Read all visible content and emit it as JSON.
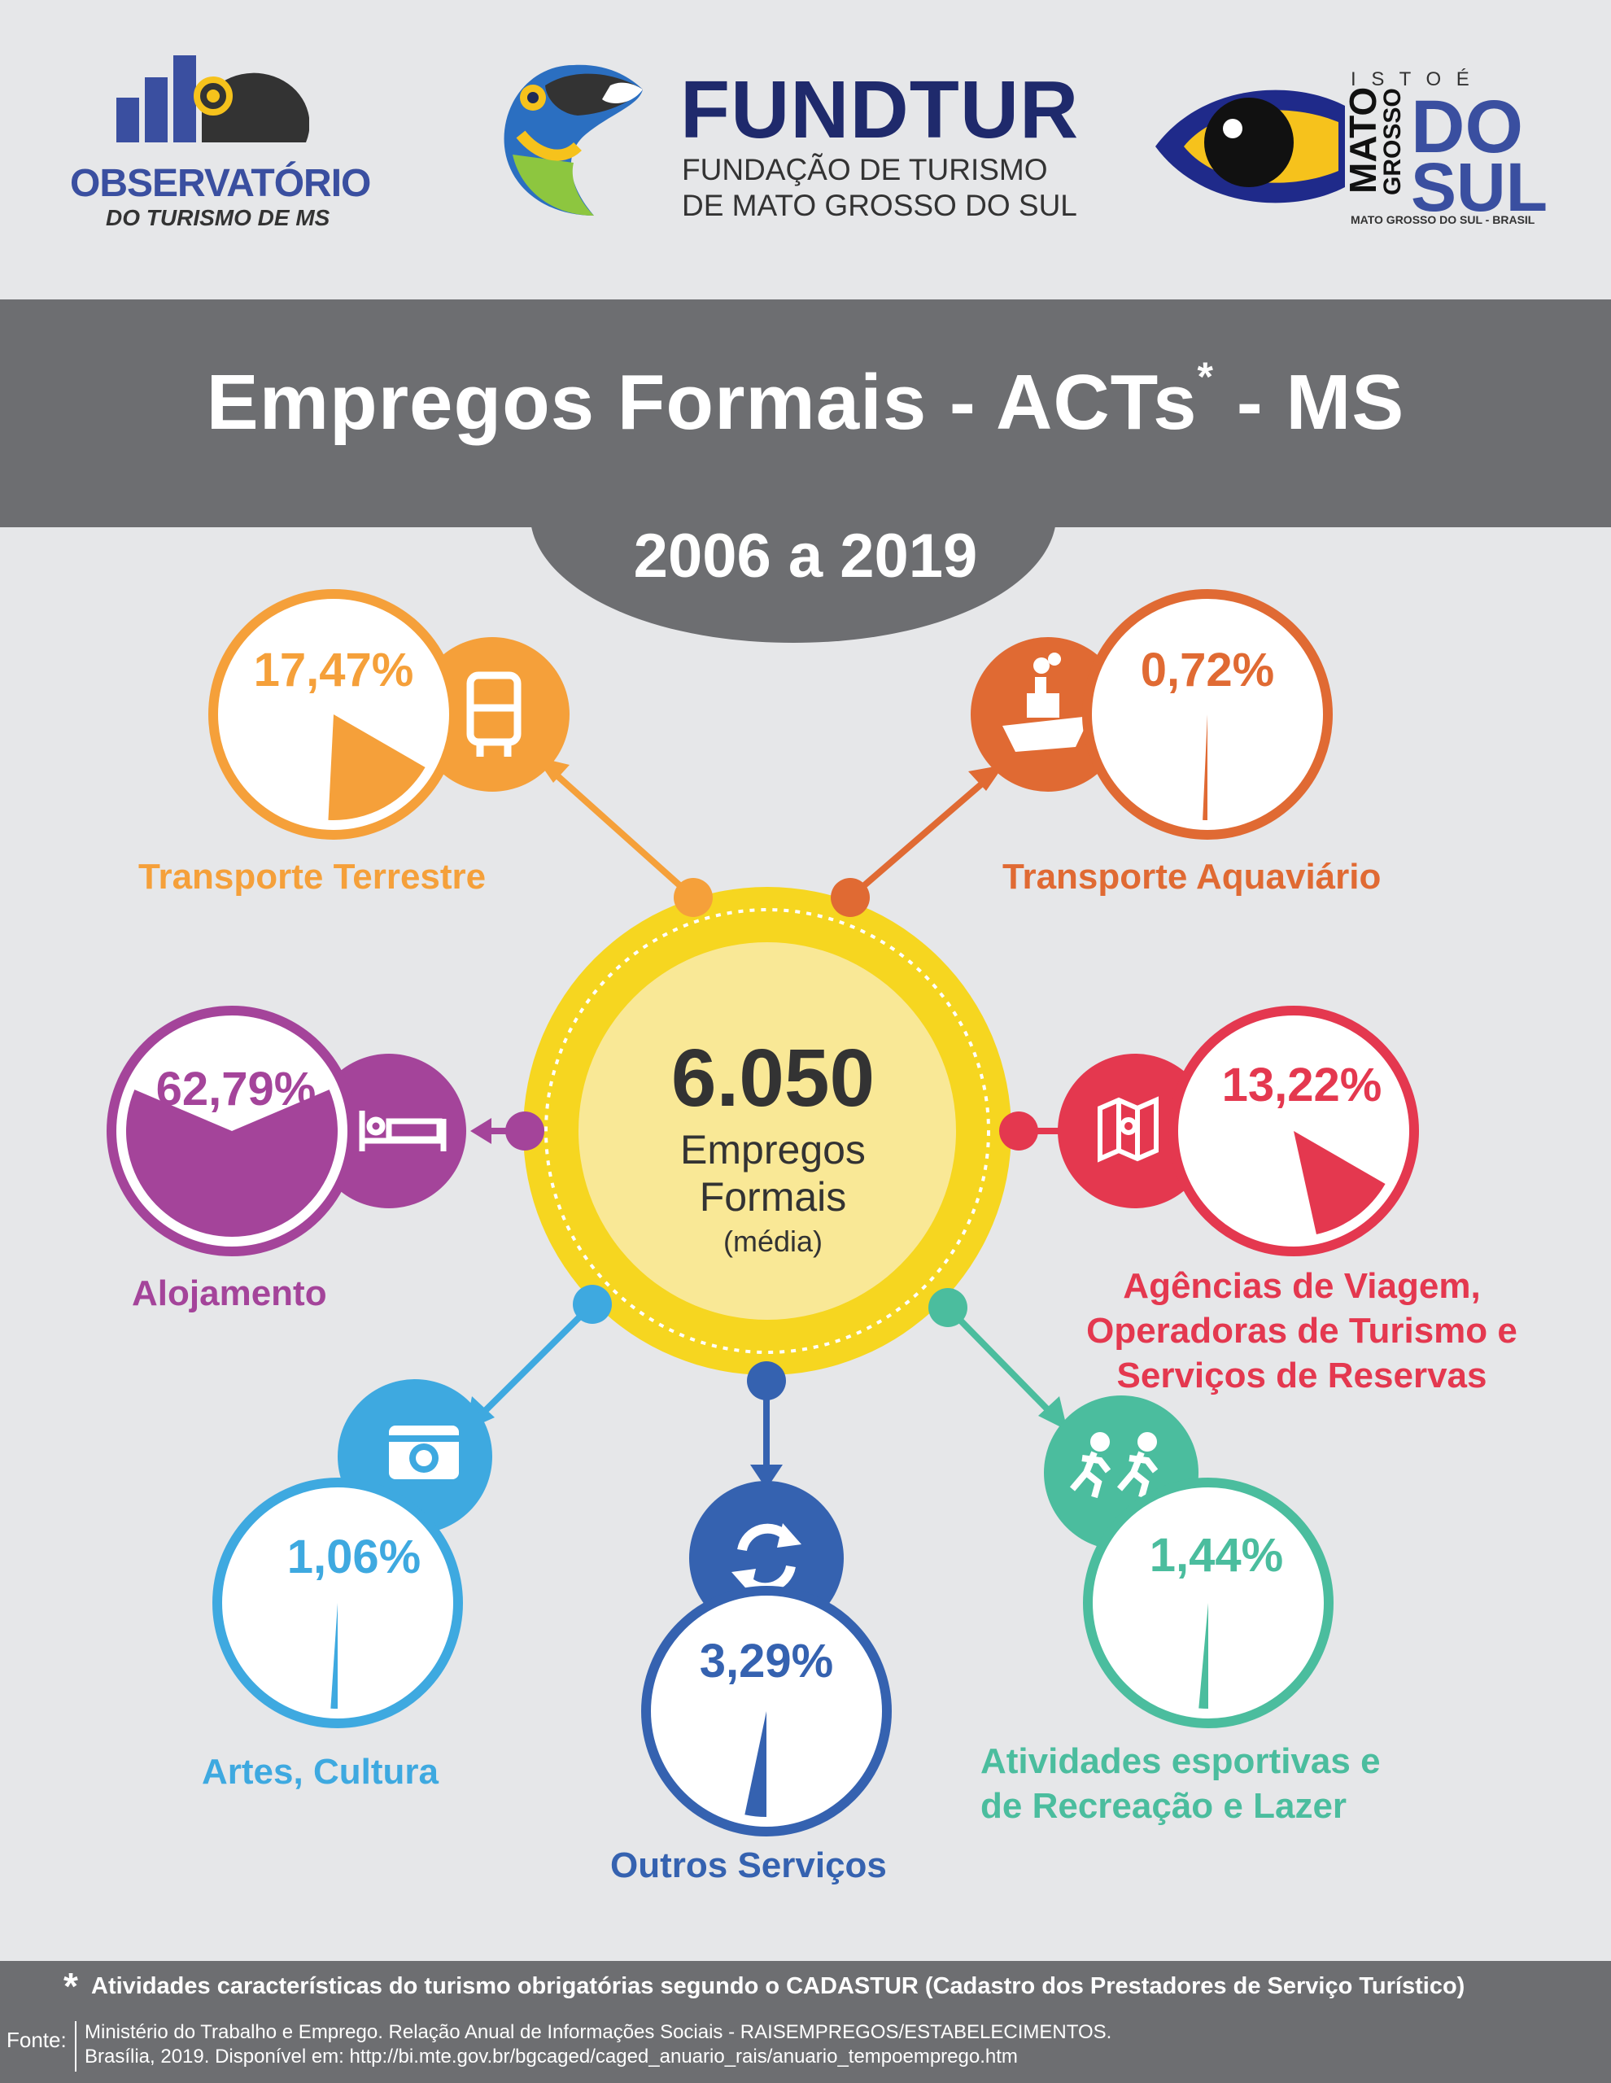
{
  "header": {
    "observatorio_line1": "OBSERVATÓRIO",
    "observatorio_line2": "DO TURISMO DE MS",
    "fundtur_name": "FUNDTUR",
    "fundtur_line1": "FUNDAÇÃO DE TURISMO",
    "fundtur_line2": "DE MATO GROSSO DO SUL",
    "ms_isto": "I S T O  É",
    "ms_mato": "MATO",
    "ms_grosso": "GROSSO",
    "ms_do": "DO",
    "ms_sul": "SUL",
    "ms_sub": "MATO GROSSO DO SUL - BRASIL"
  },
  "title": {
    "main": "Empregos Formais - ACTs",
    "asterisk": "*",
    "suffix": " - MS",
    "period": "2006 a 2019"
  },
  "center": {
    "value": "6.050",
    "line1": "Empregos",
    "line2": "Formais",
    "line3": "(média)"
  },
  "chart_data": {
    "type": "pie",
    "categories": [
      "Alojamento",
      "Transporte Terrestre",
      "Agências de Viagem, Operadoras de Turismo e Serviços de Reservas",
      "Outros Serviços",
      "Atividades esportivas e de Recreação e Lazer",
      "Artes, Cultura",
      "Transporte Aquaviário"
    ],
    "values": [
      62.79,
      17.47,
      13.22,
      3.29,
      1.44,
      1.06,
      0.72
    ]
  },
  "items": {
    "terrestre": {
      "pct": "17,47%",
      "label": "Transporte Terrestre",
      "value": 17.47,
      "color": "#f5a03a",
      "icon": "bus-icon"
    },
    "aquaviario": {
      "pct": "0,72%",
      "label": "Transporte Aquaviário",
      "value": 0.72,
      "color": "#e06a33",
      "icon": "ship-icon"
    },
    "alojamento": {
      "pct": "62,79%",
      "label": "Alojamento",
      "value": 62.79,
      "color": "#a4449a",
      "icon": "bed-icon"
    },
    "agencias": {
      "pct": "13,22%",
      "label1": "Agências de Viagem,",
      "label2": "Operadoras de Turismo e",
      "label3": "Serviços de Reservas",
      "value": 13.22,
      "color": "#e4384f",
      "icon": "map-icon"
    },
    "artes": {
      "pct": "1,06%",
      "label": "Artes, Cultura",
      "value": 1.06,
      "color": "#3ea9e0",
      "icon": "camera-icon"
    },
    "outros": {
      "pct": "3,29%",
      "label": "Outros Serviços",
      "value": 3.29,
      "color": "#3562b0",
      "icon": "refresh-icon"
    },
    "esportivas": {
      "pct": "1,44%",
      "label1": "Atividades esportivas e",
      "label2": "de Recreação e Lazer",
      "value": 1.44,
      "color": "#4bbd9e",
      "icon": "running-icon"
    }
  },
  "footer": {
    "asterisk": "*",
    "note": "Atividades características do turismo obrigatórias segundo o CADASTUR (Cadastro dos Prestadores de Serviço Turístico)",
    "fonte_label": "Fonte:",
    "fonte_line1": "Ministério do Trabalho e Emprego. Relação Anual de Informações Sociais - RAISEMPREGOS/ESTABELECIMENTOS.",
    "fonte_line2": "Brasília, 2019. Disponível em: http://bi.mte.gov.br/bgcaged/caged_anuario_rais/anuario_tempoemprego.htm"
  }
}
